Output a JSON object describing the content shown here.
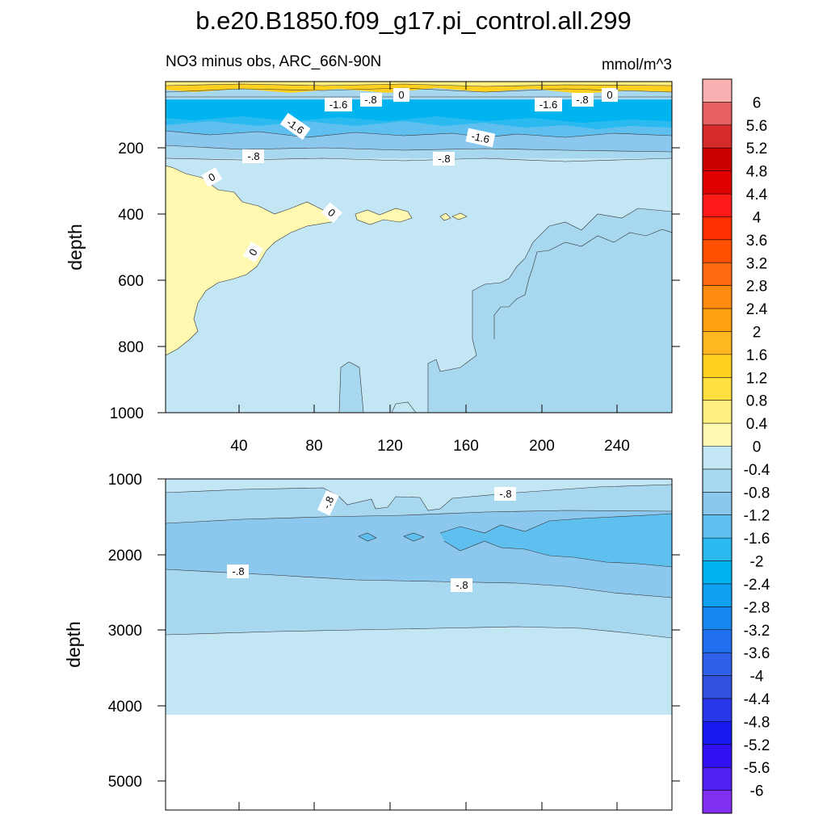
{
  "title": "b.e20.B1850.f09_g17.pi_control.all.299",
  "chart_data": {
    "type": "heatmap",
    "variable_label": "NO3 minus obs, ARC_66N-90N",
    "units": "mmol/m^3",
    "upper_panel": {
      "ylabel": "depth",
      "ylim": [
        1000,
        0
      ],
      "xlim": [
        0,
        262
      ],
      "xticks": [
        "40",
        "80",
        "120",
        "160",
        "200",
        "240"
      ],
      "yticks": [
        "200",
        "400",
        "600",
        "800",
        "1000"
      ],
      "contour_labels": [
        "-1.6",
        "-.8",
        "0",
        "-1.6",
        "-.8",
        "0",
        "-1.6",
        "-1.6",
        "-.8",
        "-.8",
        "0",
        "0",
        "0"
      ]
    },
    "lower_panel": {
      "ylabel": "depth",
      "ylim": [
        5400,
        1000
      ],
      "data_max_depth": 4100,
      "yticks": [
        "1000",
        "2000",
        "3000",
        "4000",
        "5000"
      ],
      "contour_labels": [
        "-.8",
        "-.8",
        "-.8",
        "-.8"
      ]
    },
    "colorbar": {
      "levels": [
        "6",
        "5.6",
        "5.2",
        "4.8",
        "4.4",
        "4",
        "3.6",
        "3.2",
        "2.8",
        "2.4",
        "2",
        "1.6",
        "1.2",
        "0.8",
        "0.4",
        "0",
        "-0.4",
        "-0.8",
        "-1.2",
        "-1.6",
        "-2",
        "-2.4",
        "-2.8",
        "-3.2",
        "-3.6",
        "-4",
        "-4.4",
        "-4.8",
        "-5.2",
        "-5.6",
        "-6"
      ],
      "colors": [
        "#f9b1b1",
        "#e86060",
        "#d52a2a",
        "#cc0000",
        "#e00000",
        "#ff1a1a",
        "#ff3000",
        "#ff5000",
        "#ff6a10",
        "#ff8a10",
        "#ffa010",
        "#ffb820",
        "#ffd020",
        "#ffe040",
        "#fff080",
        "#fff8b0",
        "#c3e6f5",
        "#a8d8f0",
        "#8cc8ee",
        "#5fc0f0",
        "#2abaf0",
        "#00b4f0",
        "#10a0f0",
        "#1888f0",
        "#2070f0",
        "#3060e8",
        "#3050e0",
        "#2838e8",
        "#1818f0",
        "#3010f0",
        "#5020f0",
        "#8030f0"
      ]
    }
  }
}
